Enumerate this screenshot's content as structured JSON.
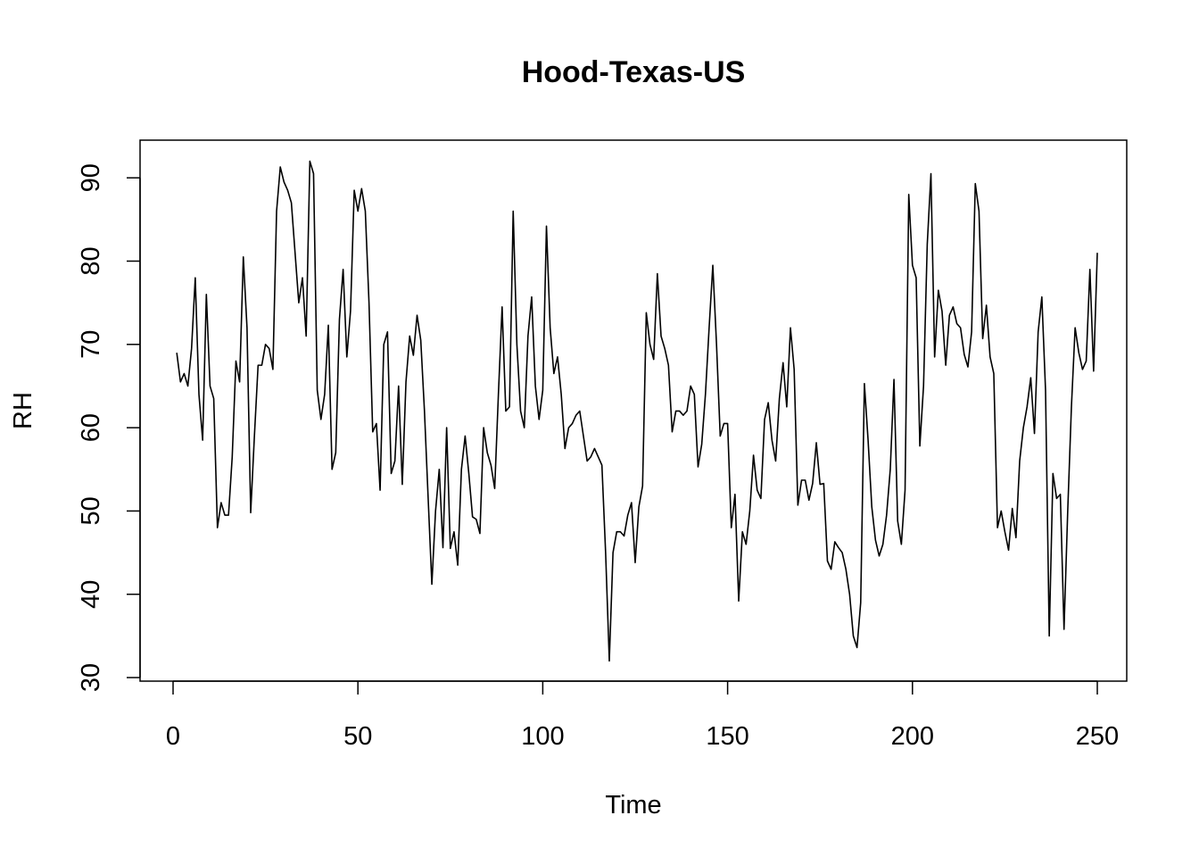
{
  "chart_data": {
    "type": "line",
    "title": "Hood-Texas-US",
    "xlabel": "Time",
    "ylabel": "RH",
    "xlim": [
      1,
      248
    ],
    "ylim": [
      30,
      92
    ],
    "xticks": [
      0,
      50,
      100,
      150,
      200,
      250
    ],
    "yticks": [
      30,
      40,
      50,
      60,
      70,
      80,
      90
    ],
    "grid": false,
    "legend": "none",
    "line_color": "#000000",
    "series": [
      {
        "x_start": 1,
        "values": [
          69,
          65.5,
          66.5,
          65,
          69.5,
          78,
          64,
          58.5,
          76,
          65,
          63.5,
          48,
          51,
          49.5,
          49.5,
          56.5,
          68,
          65.5,
          80.5,
          72,
          49.8,
          59,
          67.5,
          67.5,
          70,
          69.5,
          67,
          86,
          91.3,
          89.5,
          88.5,
          87,
          81,
          75,
          78,
          71,
          92,
          90.5,
          64.5,
          61,
          64,
          72.3,
          55,
          57,
          73,
          79,
          68.5,
          74,
          88.5,
          86,
          88.7,
          86,
          75,
          59.5,
          60.5,
          52.5,
          70,
          71.5,
          54.5,
          56,
          65,
          53.2,
          65.5,
          71,
          68.7,
          73.5,
          70.5,
          62,
          51.5,
          41.2,
          50,
          55,
          45.6,
          60,
          45.5,
          47.5,
          43.5,
          55,
          59,
          54.5,
          49.3,
          49,
          47.3,
          60,
          57,
          55.5,
          52.7,
          64,
          74.5,
          62,
          62.5,
          86,
          70,
          62,
          60,
          71,
          75.7,
          65,
          61,
          64.5,
          84.2,
          72,
          66.5,
          68.5,
          64,
          57.5,
          60,
          60.5,
          61.5,
          62,
          59,
          56,
          56.5,
          57.5,
          56.5,
          55.5,
          45,
          32,
          45,
          47.5,
          47.5,
          47,
          49.5,
          51,
          43.8,
          50.5,
          53,
          73.8,
          70,
          68.2,
          78.5,
          71,
          69.5,
          67.5,
          59.5,
          62,
          62,
          61.5,
          62,
          65,
          64,
          55.3,
          58,
          64,
          72,
          79.5,
          70,
          59,
          60.5,
          60.5,
          48,
          52,
          39.2,
          47.5,
          46,
          50,
          56.7,
          52.5,
          51.5,
          61,
          63,
          58.5,
          56,
          63.5,
          67.8,
          62.5,
          72,
          67,
          50.7,
          53.7,
          53.7,
          51.3,
          53.3,
          58.2,
          53.2,
          53.3,
          44,
          43,
          46.3,
          45.6,
          45,
          43,
          40,
          35,
          33.6,
          39,
          65.3,
          58.5,
          50.5,
          46.5,
          44.6,
          46,
          49.5,
          55,
          65.8,
          48.8,
          46,
          52.5,
          88,
          79.5,
          78,
          57.8,
          65,
          82,
          90.5,
          68.5,
          76.5,
          74,
          67.5,
          73.5,
          74.5,
          72.5,
          72,
          68.8,
          67.3,
          71.5,
          89.3,
          86,
          70.7,
          74.7,
          68.5,
          66.5,
          48,
          50,
          47.5,
          45.3,
          50.3,
          46.8,
          56,
          60,
          62.5,
          66,
          59.3,
          71.5,
          75.7,
          64.5,
          35,
          54.5,
          51.5,
          52,
          35.8,
          50,
          62.5,
          72,
          69,
          67,
          68,
          79,
          66.8,
          81
        ]
      }
    ]
  }
}
